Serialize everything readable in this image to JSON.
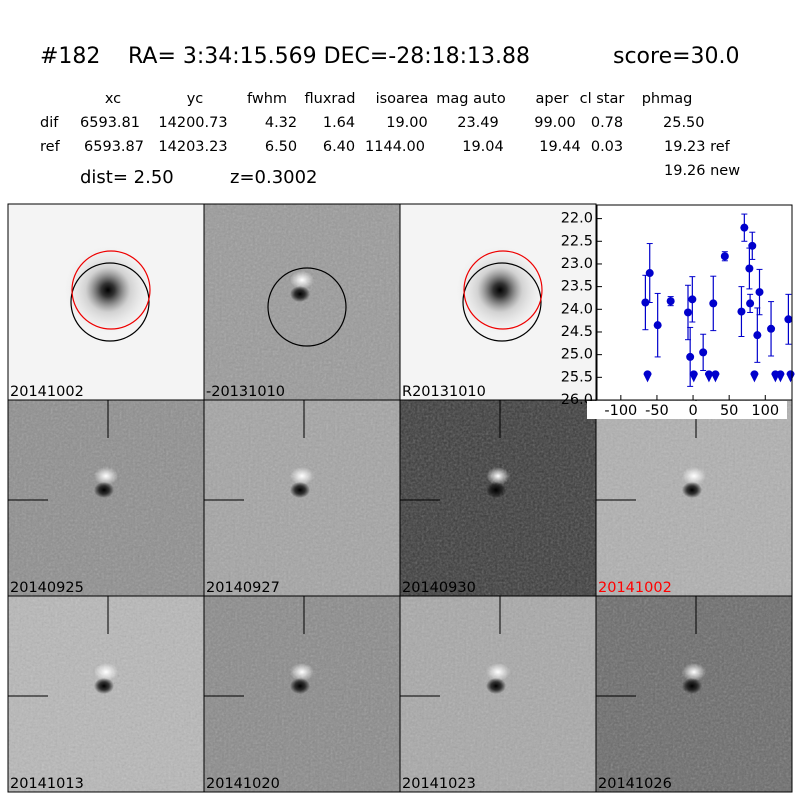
{
  "header": {
    "id": "#182",
    "coords": "RA= 3:34:15.569 DEC=-28:18:13.88",
    "score": "score=30.0"
  },
  "table": {
    "columns": [
      "xc",
      "yc",
      "fwhm",
      "fluxrad",
      "isoarea",
      "mag auto",
      "aper",
      "cl star",
      "phmag"
    ],
    "rows": [
      [
        "dif",
        "6593.81",
        "14200.73",
        "4.32",
        "1.64",
        "19.00",
        "23.49",
        "99.00",
        "0.78",
        "25.50"
      ],
      [
        "ref",
        "6593.87",
        "14203.23",
        "6.50",
        "6.40",
        "1144.00",
        "19.04",
        "19.44",
        "0.03",
        "19.23 ref"
      ]
    ],
    "extra": "19.26 new"
  },
  "dist": "dist=  2.50",
  "z": "z=0.3002",
  "stamps": [
    "20141002",
    "-20131010",
    "R20131010",
    "20140925",
    "20140927",
    "20140930",
    "20141002",
    "20141013",
    "20141020",
    "20141023",
    "20141026"
  ],
  "chart_data": {
    "type": "scatter",
    "color": "#0000cc",
    "xlim": [
      -133,
      137
    ],
    "ylim": [
      26.0,
      21.7
    ],
    "xticks": [
      -100,
      -50,
      0,
      50,
      100
    ],
    "yticks": [
      {
        "value": 22.0,
        "label": "22.0"
      },
      {
        "value": 22.5,
        "label": "22.5"
      },
      {
        "value": 23.0,
        "label": "23.0"
      },
      {
        "value": 23.5,
        "label": "23.5"
      },
      {
        "value": 24.0,
        "label": "24.0"
      },
      {
        "value": 24.5,
        "label": "24.5"
      },
      {
        "value": 25.0,
        "label": "25.0"
      },
      {
        "value": 25.5,
        "label": "25.5"
      },
      {
        "value": 26.0,
        "label": "26.0"
      }
    ],
    "detections": {
      "x": [
        -66,
        -60,
        -49,
        -31,
        -7,
        -4,
        -1,
        14,
        28,
        44,
        67,
        71,
        78,
        79,
        82,
        89,
        92,
        108,
        132
      ],
      "values": [
        23.85,
        23.2,
        24.35,
        23.82,
        24.07,
        25.05,
        23.78,
        24.95,
        23.87,
        22.83,
        24.05,
        22.2,
        23.1,
        23.87,
        22.6,
        24.57,
        23.62,
        24.43,
        24.22
      ],
      "errors": [
        0.6,
        0.65,
        0.7,
        0.1,
        0.6,
        0.65,
        0.5,
        0.4,
        0.6,
        0.1,
        0.55,
        0.3,
        0.45,
        0.2,
        0.3,
        0.6,
        0.5,
        0.6,
        0.55
      ]
    },
    "limits": {
      "x": [
        -63,
        1,
        22,
        31,
        85,
        114,
        121,
        135
      ],
      "values": [
        25.5,
        25.5,
        25.5,
        25.5,
        25.5,
        25.5,
        25.5,
        25.5
      ]
    }
  }
}
